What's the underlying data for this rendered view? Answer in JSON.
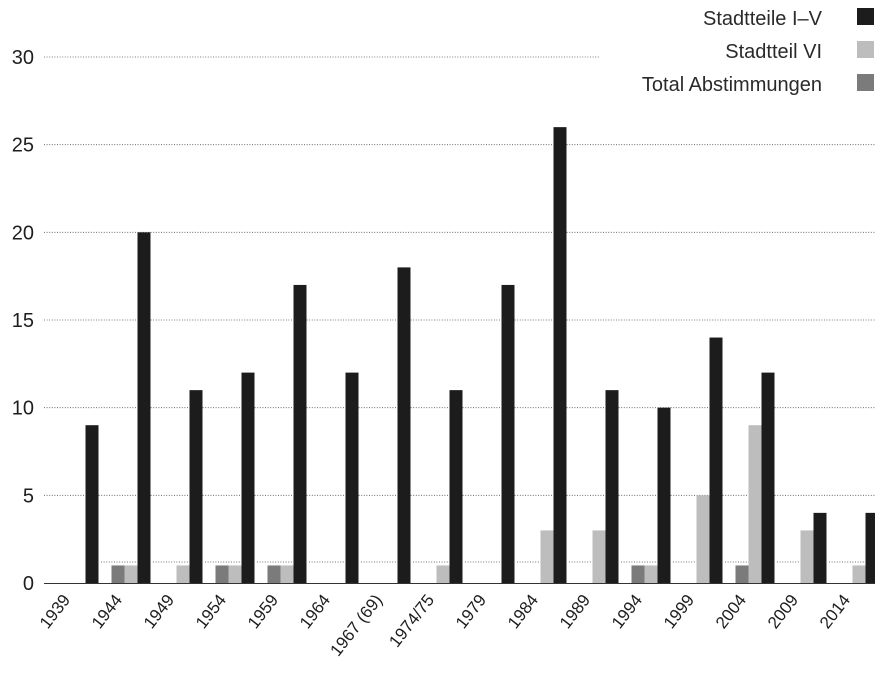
{
  "chart_data": {
    "type": "bar",
    "categories": [
      "1939",
      "1944",
      "1949",
      "1954",
      "1959",
      "1964",
      "1967 (69)",
      "1974/75",
      "1979",
      "1984",
      "1989",
      "1994",
      "1999",
      "2004",
      "2009",
      "2014"
    ],
    "series": [
      {
        "name": "Total Abstimmungen",
        "color": "#7b7b7b",
        "values": [
          0,
          1,
          0,
          1,
          1,
          0,
          0,
          0,
          0,
          0,
          0,
          1,
          0,
          1,
          0,
          0
        ]
      },
      {
        "name": "Stadtteil VI",
        "color": "#bdbdbd",
        "values": [
          0,
          1,
          1,
          1,
          1,
          0,
          0,
          1,
          0,
          3,
          3,
          1,
          5,
          9,
          3,
          1
        ]
      },
      {
        "name": "Stadtteile I–V",
        "color": "#1c1c1c",
        "values": [
          9,
          20,
          11,
          12,
          17,
          12,
          18,
          11,
          17,
          26,
          11,
          10,
          14,
          12,
          4,
          4
        ]
      }
    ],
    "ylim": [
      0,
      30
    ],
    "yticks": [
      "0",
      "5",
      "10",
      "15",
      "20",
      "25",
      "30"
    ],
    "grid": true,
    "legend_position": "top-right",
    "legend_order": [
      "Stadtteile I–V",
      "Stadtteil VI",
      "Total Abstimmungen"
    ]
  }
}
